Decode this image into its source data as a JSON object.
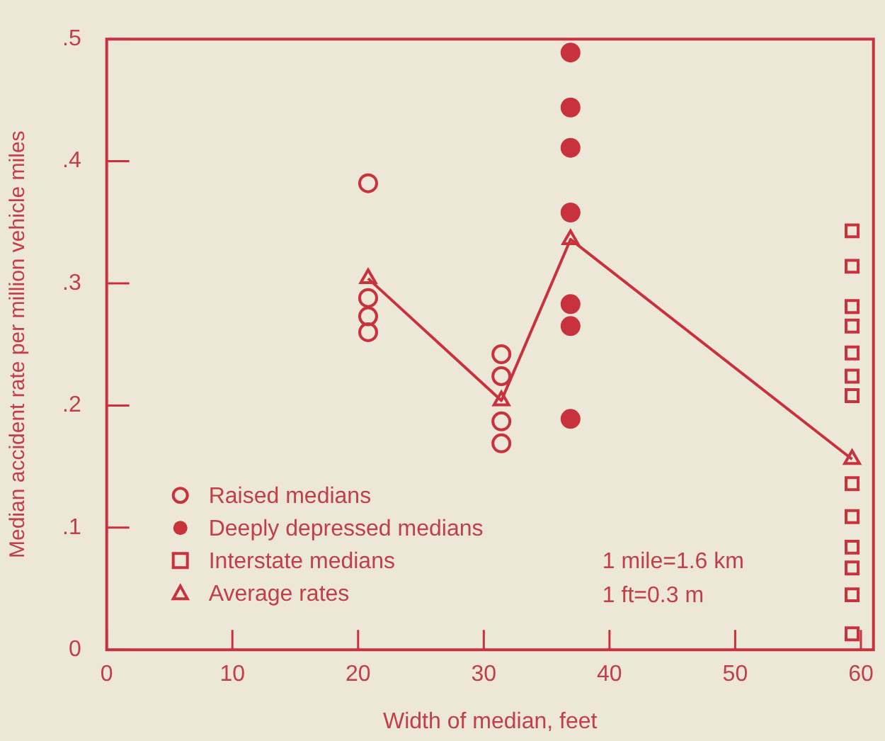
{
  "chart_data": {
    "type": "scatter",
    "xlabel": "Width of median, feet",
    "ylabel": "Median accident rate per million vehicle miles",
    "xlim": [
      0,
      61
    ],
    "xticks": [
      0,
      10,
      20,
      30,
      40,
      50,
      60
    ],
    "ylim": [
      0,
      0.5
    ],
    "yticks": [
      {
        "value": 0,
        "label": "0"
      },
      {
        "value": 0.1,
        "label": ".1"
      },
      {
        "value": 0.2,
        "label": ".2"
      },
      {
        "value": 0.3,
        "label": ".3"
      },
      {
        "value": 0.4,
        "label": ".4"
      },
      {
        "value": 0.5,
        "label": ".5"
      }
    ],
    "grid": false,
    "legend": "bottom left",
    "series": [
      {
        "name": "Raised medians",
        "marker": "circle",
        "color": "#c8323c",
        "x": [
          20.8,
          20.8,
          20.8,
          20.8,
          31.4,
          31.4,
          31.4,
          31.4
        ],
        "values": [
          0.382,
          0.288,
          0.273,
          0.26,
          0.242,
          0.224,
          0.187,
          0.169
        ]
      },
      {
        "name": "Deeply depressed medians",
        "marker": "circle",
        "color": "#c8323c",
        "x": [
          36.9,
          36.9,
          36.9,
          36.9,
          36.9,
          36.9,
          36.9
        ],
        "values": [
          0.489,
          0.444,
          0.411,
          0.358,
          0.283,
          0.265,
          0.189
        ]
      },
      {
        "name": "Interstate medians",
        "marker": "square",
        "color": "#c8323c",
        "x": [
          59.3,
          59.3,
          59.3,
          59.3,
          59.3,
          59.3,
          59.3,
          59.3,
          59.3,
          59.3,
          59.3,
          59.3,
          59.3
        ],
        "values": [
          0.343,
          0.314,
          0.281,
          0.265,
          0.243,
          0.224,
          0.208,
          0.136,
          0.109,
          0.084,
          0.067,
          0.045,
          0.013
        ]
      },
      {
        "name": "Average rates",
        "type": "line",
        "marker": "triangle",
        "color": "#c8323c",
        "x": [
          20.8,
          31.4,
          36.9,
          59.3
        ],
        "values": [
          0.304,
          0.204,
          0.336,
          0.156
        ]
      }
    ],
    "annotations": [
      "1 mile=1.6 km",
      "1 ft=0.3 m"
    ]
  }
}
